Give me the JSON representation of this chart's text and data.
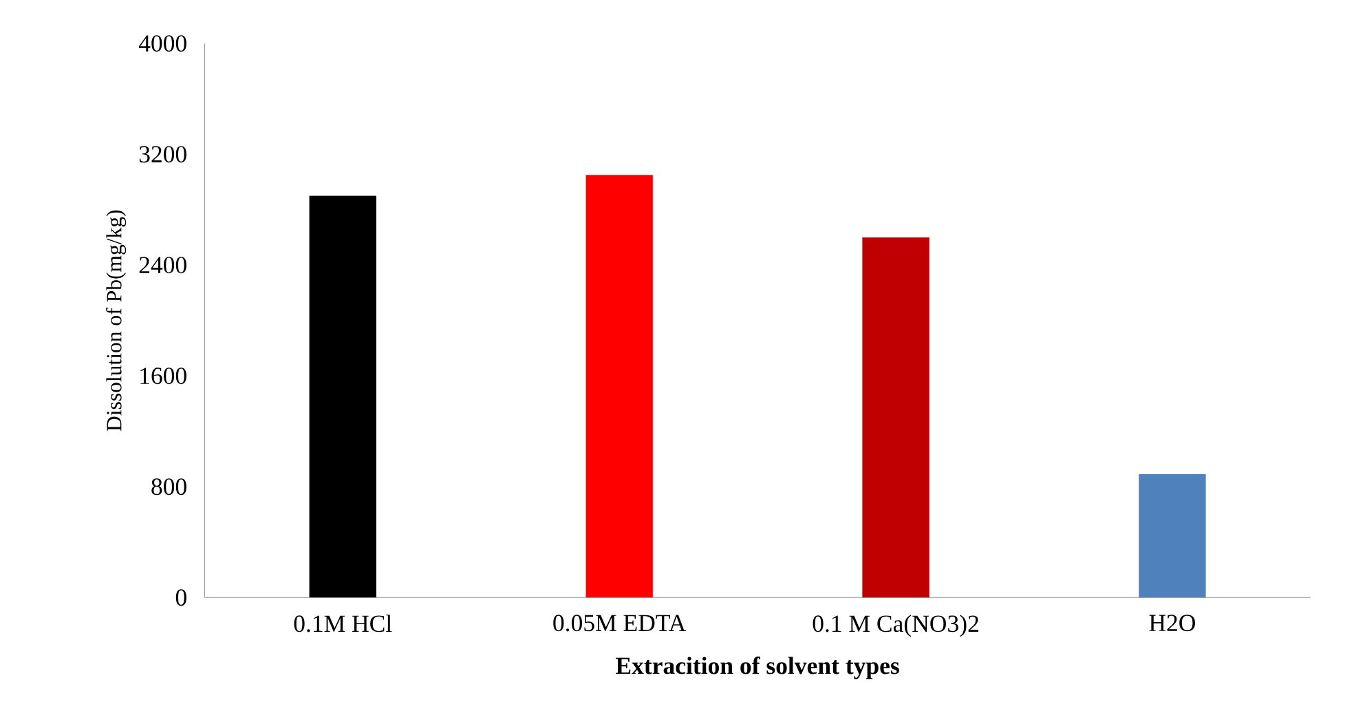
{
  "chart_data": {
    "type": "bar",
    "xlabel": "Extracition of solvent types",
    "ylabel": "Dissolution of Pb(mg/kg)",
    "categories": [
      "0.1M HCl",
      "0.05M EDTA",
      "0.1 M Ca(NO3)2",
      "H2O"
    ],
    "values": [
      2900,
      3050,
      2600,
      890
    ],
    "colors": [
      "#000000",
      "#ff0000",
      "#c00000",
      "#4f81bd"
    ],
    "ylim": [
      0,
      4000
    ],
    "yticks": [
      0,
      800,
      1600,
      2400,
      3200,
      4000
    ],
    "grid": false
  }
}
